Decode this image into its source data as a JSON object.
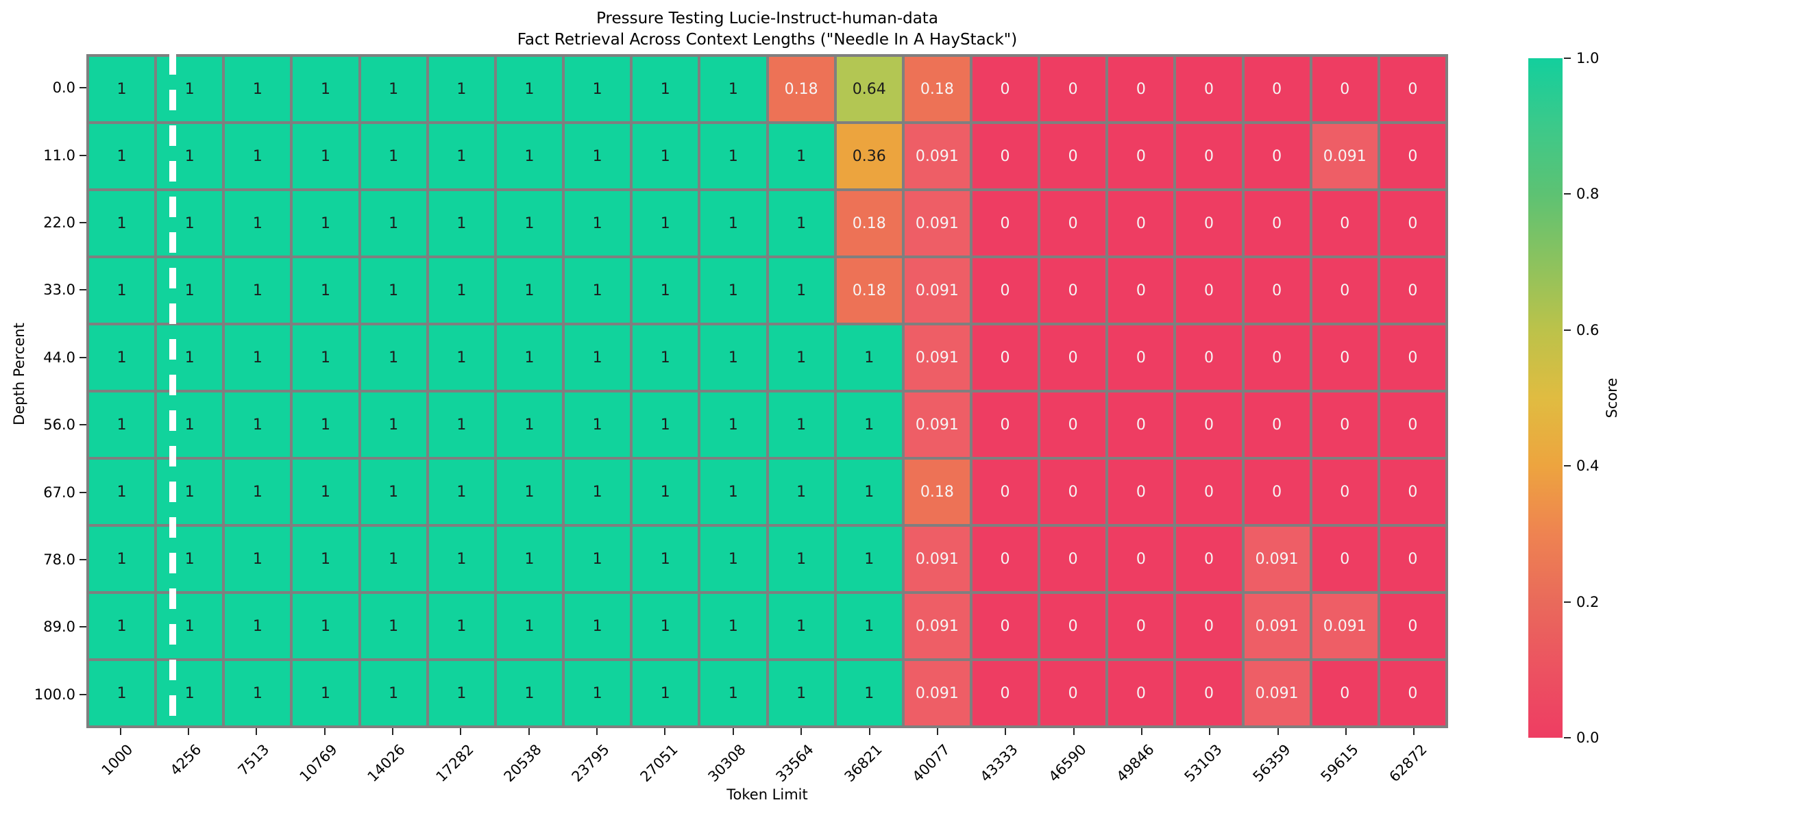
{
  "title": {
    "line1": "Pressure Testing Lucie-Instruct-human-data",
    "line2": "Fact Retrieval Across Context Lengths (\"Needle In A HayStack\")"
  },
  "chart_data": {
    "type": "heatmap",
    "title": "Pressure Testing Lucie-Instruct-human-data\nFact Retrieval Across Context Lengths (\"Needle In A HayStack\")",
    "xlabel": "Token Limit",
    "ylabel": "Depth Percent",
    "x_categories": [
      "1000",
      "4256",
      "7513",
      "10769",
      "14026",
      "17282",
      "20538",
      "23795",
      "27051",
      "30308",
      "33564",
      "36821",
      "40077",
      "43333",
      "46590",
      "49846",
      "53103",
      "56359",
      "59615",
      "62872"
    ],
    "y_categories": [
      "0.0",
      "11.0",
      "22.0",
      "33.0",
      "44.0",
      "56.0",
      "67.0",
      "78.0",
      "89.0",
      "100.0"
    ],
    "rows": [
      [
        "1",
        "1",
        "1",
        "1",
        "1",
        "1",
        "1",
        "1",
        "1",
        "1",
        "0.18",
        "0.64",
        "0.18",
        "0",
        "0",
        "0",
        "0",
        "0",
        "0",
        "0"
      ],
      [
        "1",
        "1",
        "1",
        "1",
        "1",
        "1",
        "1",
        "1",
        "1",
        "1",
        "1",
        "0.36",
        "0.091",
        "0",
        "0",
        "0",
        "0",
        "0",
        "0.091",
        "0"
      ],
      [
        "1",
        "1",
        "1",
        "1",
        "1",
        "1",
        "1",
        "1",
        "1",
        "1",
        "1",
        "0.18",
        "0.091",
        "0",
        "0",
        "0",
        "0",
        "0",
        "0",
        "0"
      ],
      [
        "1",
        "1",
        "1",
        "1",
        "1",
        "1",
        "1",
        "1",
        "1",
        "1",
        "1",
        "0.18",
        "0.091",
        "0",
        "0",
        "0",
        "0",
        "0",
        "0",
        "0"
      ],
      [
        "1",
        "1",
        "1",
        "1",
        "1",
        "1",
        "1",
        "1",
        "1",
        "1",
        "1",
        "1",
        "0.091",
        "0",
        "0",
        "0",
        "0",
        "0",
        "0",
        "0"
      ],
      [
        "1",
        "1",
        "1",
        "1",
        "1",
        "1",
        "1",
        "1",
        "1",
        "1",
        "1",
        "1",
        "0.091",
        "0",
        "0",
        "0",
        "0",
        "0",
        "0",
        "0"
      ],
      [
        "1",
        "1",
        "1",
        "1",
        "1",
        "1",
        "1",
        "1",
        "1",
        "1",
        "1",
        "1",
        "0.18",
        "0",
        "0",
        "0",
        "0",
        "0",
        "0",
        "0"
      ],
      [
        "1",
        "1",
        "1",
        "1",
        "1",
        "1",
        "1",
        "1",
        "1",
        "1",
        "1",
        "1",
        "0.091",
        "0",
        "0",
        "0",
        "0",
        "0.091",
        "0",
        "0"
      ],
      [
        "1",
        "1",
        "1",
        "1",
        "1",
        "1",
        "1",
        "1",
        "1",
        "1",
        "1",
        "1",
        "0.091",
        "0",
        "0",
        "0",
        "0",
        "0.091",
        "0.091",
        "0"
      ],
      [
        "1",
        "1",
        "1",
        "1",
        "1",
        "1",
        "1",
        "1",
        "1",
        "1",
        "1",
        "1",
        "0.091",
        "0",
        "0",
        "0",
        "0",
        "0.091",
        "0",
        "0"
      ]
    ],
    "value_colors": {
      "1": "#11d39c",
      "0.64": "#b3c653",
      "0.36": "#eca43e",
      "0.18": "#ed7256",
      "0.091": "#ee5e66",
      "0": "#ee3d62"
    },
    "value_text_colors": {
      "1": "#1c1c1c",
      "0.64": "#1c1c1c",
      "0.36": "#1c1c1c",
      "0.18": "#f7f5f5",
      "0.091": "#f7f5f5",
      "0": "#f7f5f5"
    },
    "grid_line_color": "#7f7f7f",
    "annotation_vline": "white dashed vertical line inside second column (after first context length)",
    "colorbar": {
      "label": "Score",
      "ticks": [
        "1.0",
        "0.8",
        "0.6",
        "0.4",
        "0.2",
        "0.0"
      ],
      "range": [
        0.0,
        1.0
      ],
      "gradient_stops": {
        "0.0": "#ee3d62",
        "0.2": "#e96a5b",
        "0.4": "#eda43f",
        "0.5": "#e0bc41",
        "0.6": "#bcc24a",
        "0.8": "#5dc273",
        "1.0": "#13cf9d"
      }
    },
    "legend_position": "right",
    "grid_on": false
  }
}
